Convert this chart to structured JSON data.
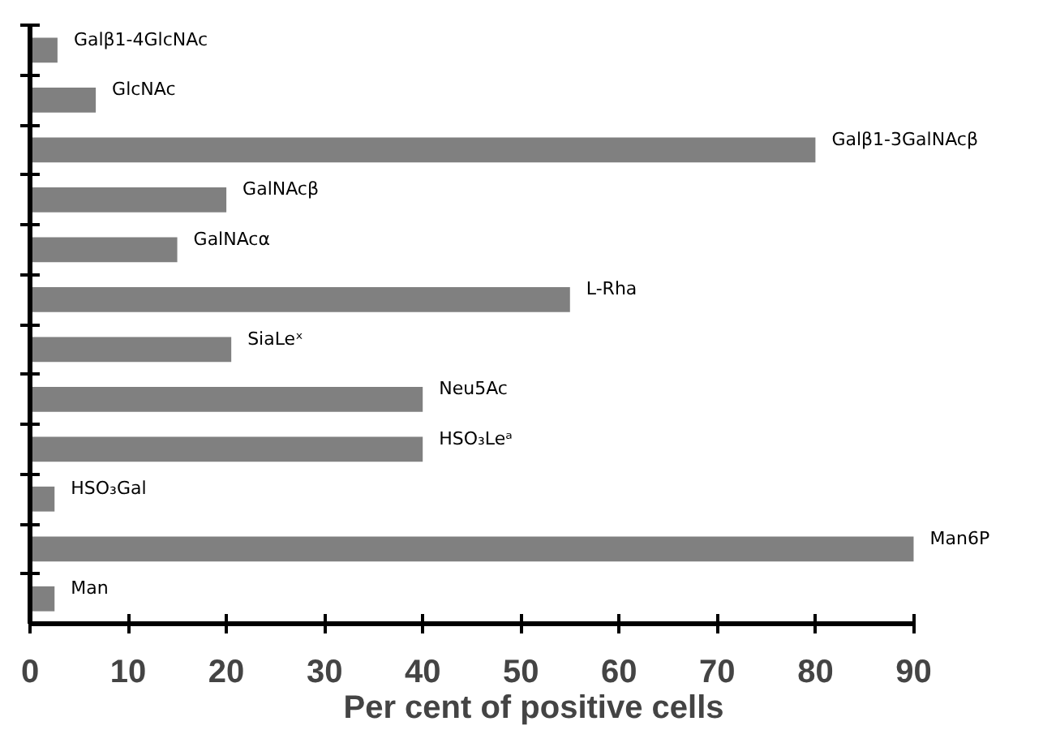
{
  "chart_data": {
    "type": "bar",
    "orientation": "horizontal",
    "xlabel": "Per cent of positive cells",
    "categories": [
      "Galβ1-4GlcNAc",
      "GlcNAc",
      "Galβ1-3GalNAcβ",
      "GalNAcβ",
      "GalNAcα",
      "L-Rha",
      "SiaLeˣ",
      "Neu5Ac",
      "HSO₃Leᵃ",
      "HSO₃Gal",
      "Man6P",
      "Man"
    ],
    "values": [
      2.8,
      6.7,
      80,
      20,
      15,
      55,
      20.5,
      40,
      40,
      2.5,
      90,
      2.5
    ],
    "color": "#808080",
    "xlim": [
      0,
      90
    ],
    "xticks": [
      0,
      10,
      20,
      30,
      40,
      50,
      60,
      70,
      80,
      90
    ],
    "grid": false,
    "tick_labels": "x"
  }
}
